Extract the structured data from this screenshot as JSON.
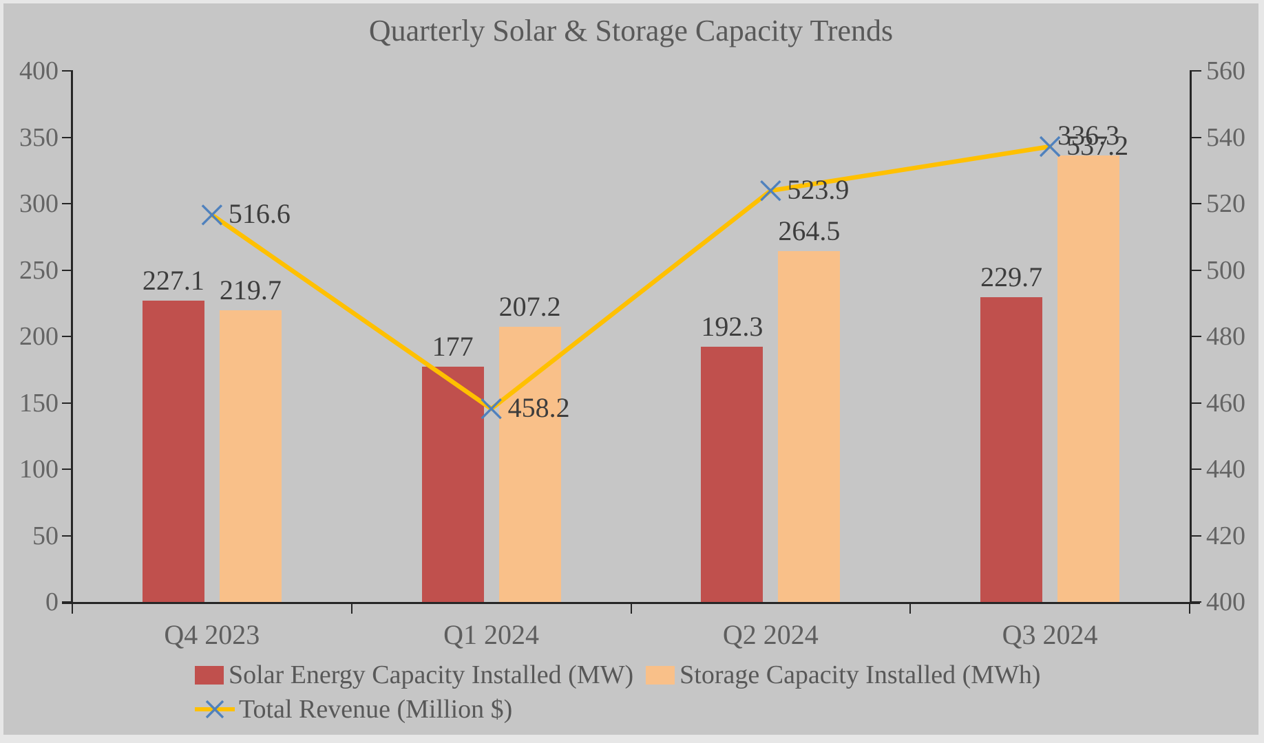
{
  "window": {
    "background": "#c6c6c6",
    "frame_color": "#e7e7e7"
  },
  "chart_data": {
    "type": "combo",
    "title": "Quarterly Solar & Storage Capacity Trends",
    "categories": [
      "Q4 2023",
      "Q1 2024",
      "Q2 2024",
      "Q3 2024"
    ],
    "series": [
      {
        "name": "Solar Energy Capacity Installed (MW)",
        "type": "bar",
        "axis": "left",
        "color": "#c0504d",
        "values": [
          227.1,
          177,
          192.3,
          229.7
        ],
        "data_labels": [
          "227.1",
          "177",
          "192.3",
          "229.7"
        ]
      },
      {
        "name": "Storage Capacity Installed (MWh)",
        "type": "bar",
        "axis": "left",
        "color": "#f9c089",
        "values": [
          219.7,
          207.2,
          264.5,
          336.3
        ],
        "data_labels": [
          "219.7",
          "207.2",
          "264.5",
          "336.3"
        ]
      },
      {
        "name": "Total Revenue (Million $)",
        "type": "line",
        "axis": "right",
        "color": "#ffc000",
        "marker": "x",
        "marker_color": "#4f81bd",
        "values": [
          516.6,
          458.2,
          523.9,
          537.2
        ],
        "data_labels": [
          "516.6",
          "458.2",
          "523.9",
          "537.2"
        ]
      }
    ],
    "left_axis": {
      "min": 0,
      "max": 400,
      "step": 50,
      "ticks": [
        "0",
        "50",
        "100",
        "150",
        "200",
        "250",
        "300",
        "350",
        "400"
      ]
    },
    "right_axis": {
      "min": 400,
      "max": 560,
      "step": 20,
      "ticks": [
        "400",
        "420",
        "440",
        "460",
        "480",
        "500",
        "520",
        "540",
        "560"
      ]
    },
    "legend_position": "bottom",
    "grid": false,
    "colors": {
      "axis_line": "#262626",
      "axis_text": "#646464",
      "data_label_text": "#3d3d3d",
      "title_text": "#595959"
    }
  }
}
